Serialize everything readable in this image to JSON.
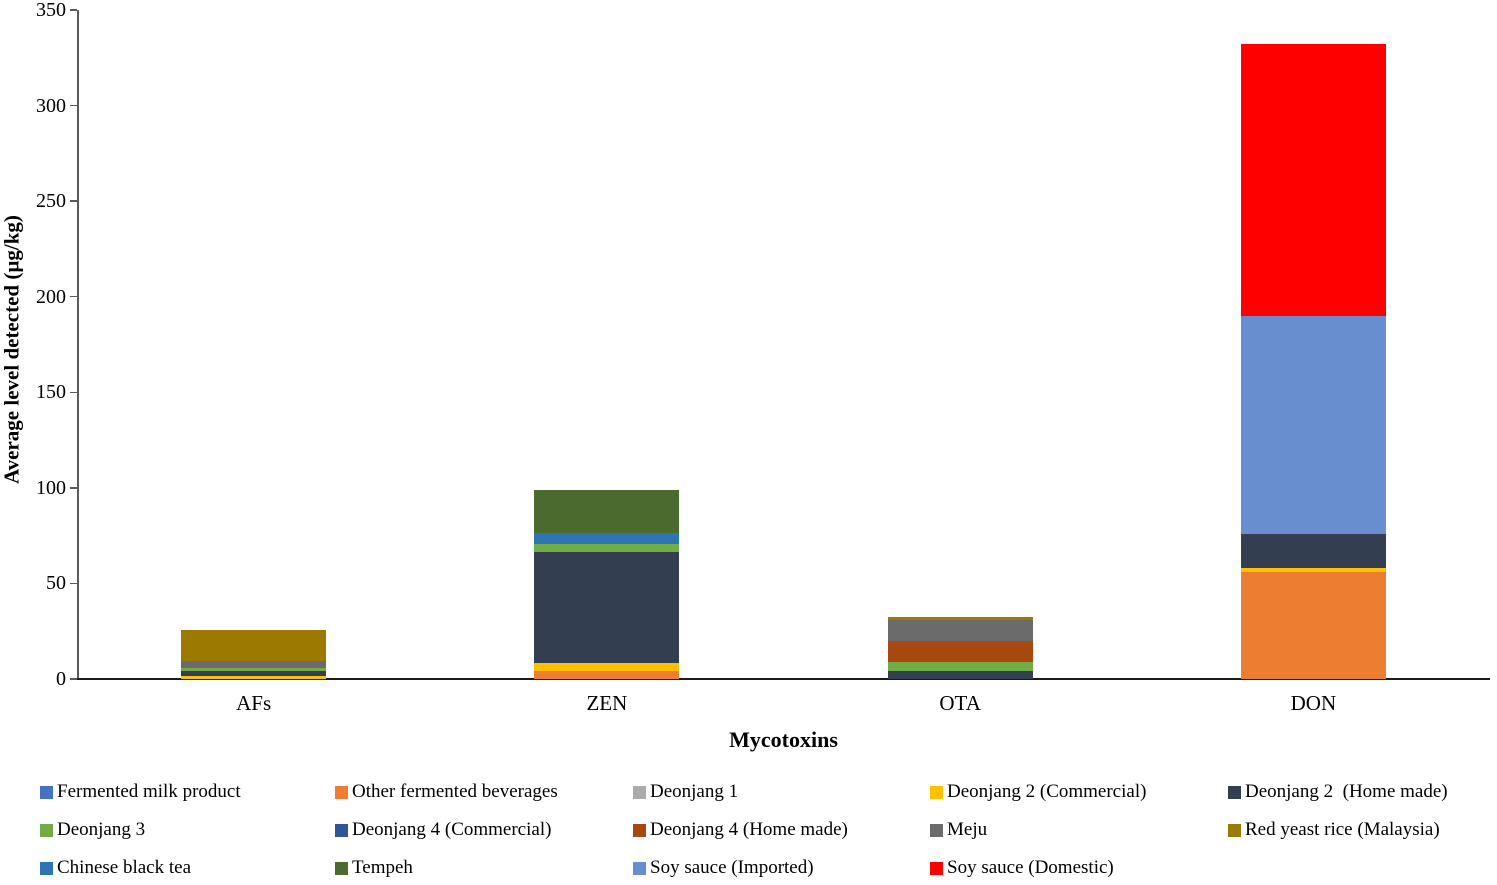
{
  "chart_data": {
    "type": "bar",
    "stacked": true,
    "title": "",
    "xlabel": "Mycotoxins",
    "ylabel": "Average level detected (µg/kg)",
    "ylim": [
      0,
      350
    ],
    "ytick_step": 50,
    "ytick_labels": [
      "0",
      "50",
      "100",
      "150",
      "200",
      "250",
      "300",
      "350"
    ],
    "grid": false,
    "legend_position": "bottom",
    "categories": [
      "AFs",
      "ZEN",
      "OTA",
      "DON"
    ],
    "series": [
      {
        "name": "Fermented milk product",
        "color": "#4472C4",
        "values": [
          0,
          0,
          0,
          0
        ]
      },
      {
        "name": "Other fermented beverages",
        "color": "#ED7D31",
        "values": [
          0,
          4,
          0,
          56
        ]
      },
      {
        "name": "Deonjang 1",
        "color": "#ABABAB",
        "values": [
          0,
          0,
          0,
          0
        ]
      },
      {
        "name": "Deonjang 2 (Commercial)",
        "color": "#FFC000",
        "values": [
          1.5,
          4.5,
          0,
          2
        ]
      },
      {
        "name": "Deonjang 2  (Home made)",
        "color": "#333F50",
        "values": [
          2.5,
          58,
          4,
          18
        ]
      },
      {
        "name": "Deonjang 3",
        "color": "#70AD47",
        "values": [
          2,
          4,
          5,
          0
        ]
      },
      {
        "name": "Deonjang 4 (Commercial)",
        "color": "#2F5597",
        "values": [
          0,
          0,
          0,
          0
        ]
      },
      {
        "name": "Deonjang 4 (Home made)",
        "color": "#A8480F",
        "values": [
          0,
          0,
          11,
          0
        ]
      },
      {
        "name": "Meju",
        "color": "#6B6B6B",
        "values": [
          3.5,
          0,
          11,
          0
        ]
      },
      {
        "name": "Red yeast rice (Malaysia)",
        "color": "#9C7A00",
        "values": [
          16,
          0,
          1.5,
          0
        ]
      },
      {
        "name": "Chinese black tea",
        "color": "#2E75B6",
        "values": [
          0,
          6,
          0,
          0
        ]
      },
      {
        "name": "Tempeh",
        "color": "#4A6B2D",
        "values": [
          0,
          22.5,
          0,
          0
        ]
      },
      {
        "name": "Soy sauce (Imported)",
        "color": "#698ED0",
        "values": [
          0,
          0,
          0,
          114
        ]
      },
      {
        "name": "Soy sauce (Domestic)",
        "color": "#FF0000",
        "values": [
          0,
          0,
          0,
          142
        ]
      }
    ]
  },
  "layout_text": {
    "x_title": "Mycotoxins",
    "y_title": "Average level detected (µg/kg)"
  }
}
